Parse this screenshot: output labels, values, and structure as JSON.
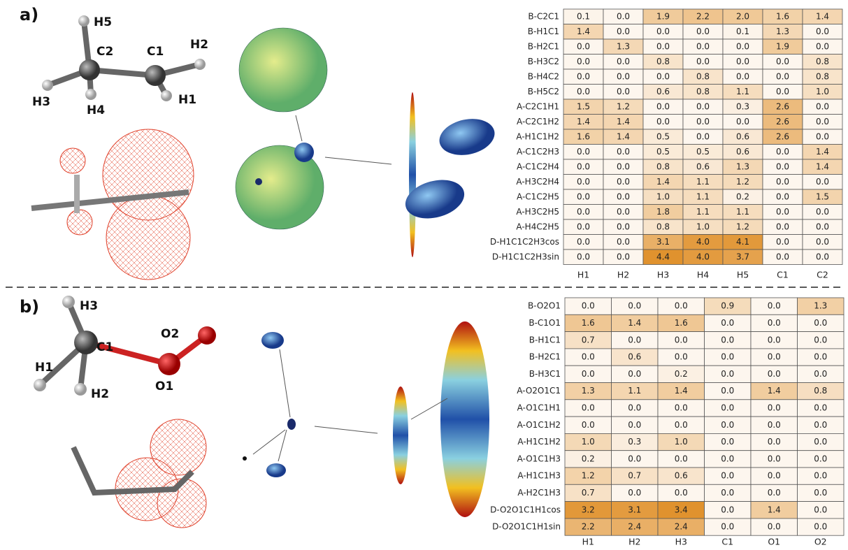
{
  "panel_a": {
    "label": "a)",
    "atoms": [
      "H5",
      "C2",
      "C1",
      "H2",
      "H3",
      "H4",
      "H1"
    ],
    "table": {
      "col_labels": [
        "H1",
        "H2",
        "H3",
        "H4",
        "H5",
        "C1",
        "C2"
      ],
      "row_labels": [
        "B-C2C1",
        "B-H1C1",
        "B-H2C1",
        "B-H3C2",
        "B-H4C2",
        "B-H5C2",
        "A-C2C1H1",
        "A-C2C1H2",
        "A-H1C1H2",
        "A-C1C2H3",
        "A-C1C2H4",
        "A-H3C2H4",
        "A-C1C2H5",
        "A-H3C2H5",
        "A-H4C2H5",
        "D-H1C1C2H3cos",
        "D-H1C1C2H3sin"
      ],
      "rows": [
        [
          "0.1",
          "0.0",
          "1.9",
          "2.2",
          "2.0",
          "1.6",
          "1.4"
        ],
        [
          "1.4",
          "0.0",
          "0.0",
          "0.0",
          "0.1",
          "1.3",
          "0.0"
        ],
        [
          "0.0",
          "1.3",
          "0.0",
          "0.0",
          "0.0",
          "1.9",
          "0.0"
        ],
        [
          "0.0",
          "0.0",
          "0.8",
          "0.0",
          "0.0",
          "0.0",
          "0.8"
        ],
        [
          "0.0",
          "0.0",
          "0.0",
          "0.8",
          "0.0",
          "0.0",
          "0.8"
        ],
        [
          "0.0",
          "0.0",
          "0.6",
          "0.8",
          "1.1",
          "0.0",
          "1.0"
        ],
        [
          "1.5",
          "1.2",
          "0.0",
          "0.0",
          "0.3",
          "2.6",
          "0.0"
        ],
        [
          "1.4",
          "1.4",
          "0.0",
          "0.0",
          "0.0",
          "2.6",
          "0.0"
        ],
        [
          "1.6",
          "1.4",
          "0.5",
          "0.0",
          "0.6",
          "2.6",
          "0.0"
        ],
        [
          "0.0",
          "0.0",
          "0.5",
          "0.5",
          "0.6",
          "0.0",
          "1.4"
        ],
        [
          "0.0",
          "0.0",
          "0.8",
          "0.6",
          "1.3",
          "0.0",
          "1.4"
        ],
        [
          "0.0",
          "0.0",
          "1.4",
          "1.1",
          "1.2",
          "0.0",
          "0.0"
        ],
        [
          "0.0",
          "0.0",
          "1.0",
          "1.1",
          "0.2",
          "0.0",
          "1.5"
        ],
        [
          "0.0",
          "0.0",
          "1.8",
          "1.1",
          "1.1",
          "0.0",
          "0.0"
        ],
        [
          "0.0",
          "0.0",
          "0.8",
          "1.0",
          "1.2",
          "0.0",
          "0.0"
        ],
        [
          "0.0",
          "0.0",
          "3.1",
          "4.0",
          "4.1",
          "0.0",
          "0.0"
        ],
        [
          "0.0",
          "0.0",
          "4.4",
          "4.0",
          "3.7",
          "0.0",
          "0.0"
        ]
      ]
    }
  },
  "panel_b": {
    "label": "b)",
    "atoms": [
      "H3",
      "C1",
      "O2",
      "H1",
      "H2",
      "O1"
    ],
    "table": {
      "col_labels": [
        "H1",
        "H2",
        "H3",
        "C1",
        "O1",
        "O2"
      ],
      "row_labels": [
        "B-O2O1",
        "B-C1O1",
        "B-H1C1",
        "B-H2C1",
        "B-H3C1",
        "A-O2O1C1",
        "A-O1C1H1",
        "A-O1C1H2",
        "A-H1C1H2",
        "A-O1C1H3",
        "A-H1C1H3",
        "A-H2C1H3",
        "D-O2O1C1H1cos",
        "D-O2O1C1H1sin"
      ],
      "rows": [
        [
          "0.0",
          "0.0",
          "0.0",
          "0.9",
          "0.0",
          "1.3"
        ],
        [
          "1.6",
          "1.4",
          "1.6",
          "0.0",
          "0.0",
          "0.0"
        ],
        [
          "0.7",
          "0.0",
          "0.0",
          "0.0",
          "0.0",
          "0.0"
        ],
        [
          "0.0",
          "0.6",
          "0.0",
          "0.0",
          "0.0",
          "0.0"
        ],
        [
          "0.0",
          "0.0",
          "0.2",
          "0.0",
          "0.0",
          "0.0"
        ],
        [
          "1.3",
          "1.1",
          "1.4",
          "0.0",
          "1.4",
          "0.8"
        ],
        [
          "0.0",
          "0.0",
          "0.0",
          "0.0",
          "0.0",
          "0.0"
        ],
        [
          "0.0",
          "0.0",
          "0.0",
          "0.0",
          "0.0",
          "0.0"
        ],
        [
          "1.0",
          "0.3",
          "1.0",
          "0.0",
          "0.0",
          "0.0"
        ],
        [
          "0.2",
          "0.0",
          "0.0",
          "0.0",
          "0.0",
          "0.0"
        ],
        [
          "1.2",
          "0.7",
          "0.6",
          "0.0",
          "0.0",
          "0.0"
        ],
        [
          "0.7",
          "0.0",
          "0.0",
          "0.0",
          "0.0",
          "0.0"
        ],
        [
          "3.2",
          "3.1",
          "3.4",
          "0.0",
          "1.4",
          "0.0"
        ],
        [
          "2.2",
          "2.4",
          "2.4",
          "0.0",
          "0.0",
          "0.0"
        ]
      ]
    }
  }
}
